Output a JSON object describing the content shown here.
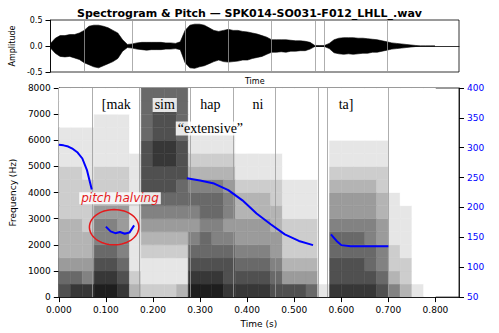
{
  "chart_data": [
    {
      "type": "area",
      "title": "Spectrogram & Pitch — SPK014-SO031-F012_LHLL_.wav",
      "x_label": "Time",
      "y_label": "Amplitude",
      "xlim": [
        0,
        0.85
      ],
      "ylim": [
        -0.5,
        0.5
      ],
      "yticks": [
        -0.5,
        {
          "value": 0,
          "label": "0.0"
        },
        0.5
      ],
      "tick_labels": "y",
      "grid": false,
      "x": [
        0,
        0.01,
        0.02,
        0.03,
        0.04,
        0.05,
        0.06,
        0.07,
        0.08,
        0.09,
        0.1,
        0.11,
        0.12,
        0.13,
        0.14,
        0.15,
        0.16,
        0.17,
        0.18,
        0.19,
        0.2,
        0.21,
        0.22,
        0.23,
        0.24,
        0.25,
        0.26,
        0.27,
        0.28,
        0.29,
        0.3,
        0.31,
        0.32,
        0.33,
        0.34,
        0.35,
        0.36,
        0.37,
        0.38,
        0.39,
        0.4,
        0.41,
        0.42,
        0.43,
        0.44,
        0.45,
        0.46,
        0.47,
        0.48,
        0.49,
        0.5,
        0.51,
        0.52,
        0.53,
        0.54,
        0.55,
        0.56,
        0.57,
        0.58,
        0.59,
        0.6,
        0.61,
        0.62,
        0.63,
        0.64,
        0.65,
        0.66,
        0.67,
        0.68,
        0.69,
        0.7,
        0.71,
        0.72,
        0.73,
        0.74,
        0.75,
        0.76,
        0.77,
        0.78,
        0.79,
        0.8
      ],
      "series": [
        {
          "color": "#000000",
          "values": [
            0.05,
            0.15,
            0.2,
            0.2,
            0.22,
            0.22,
            0.25,
            0.3,
            0.38,
            0.4,
            0.4,
            0.38,
            0.35,
            0.3,
            0.25,
            0.12,
            0.03,
            0.04,
            0.06,
            0.07,
            0.07,
            0.07,
            0.07,
            0.07,
            0.06,
            0.06,
            0.05,
            0.08,
            0.3,
            0.4,
            0.42,
            0.42,
            0.4,
            0.35,
            0.3,
            0.28,
            0.3,
            0.32,
            0.3,
            0.3,
            0.28,
            0.27,
            0.25,
            0.23,
            0.2,
            0.17,
            0.12,
            0.12,
            0.12,
            0.12,
            0.11,
            0.1,
            0.1,
            0.09,
            0.07,
            0.01,
            0.01,
            0.01,
            0.05,
            0.12,
            0.15,
            0.16,
            0.16,
            0.16,
            0.15,
            0.15,
            0.14,
            0.13,
            0.12,
            0.1,
            0.08,
            0.06,
            0.05,
            0.04,
            0.03,
            0.02,
            0.01,
            0,
            0,
            0,
            0
          ]
        },
        {
          "color": "#000000",
          "values": [
            -0.04,
            -0.14,
            -0.2,
            -0.21,
            -0.2,
            -0.23,
            -0.26,
            -0.32,
            -0.36,
            -0.4,
            -0.42,
            -0.38,
            -0.34,
            -0.3,
            -0.24,
            -0.1,
            -0.03,
            -0.04,
            -0.06,
            -0.07,
            -0.08,
            -0.07,
            -0.07,
            -0.07,
            -0.06,
            -0.06,
            -0.05,
            -0.07,
            -0.32,
            -0.42,
            -0.43,
            -0.4,
            -0.38,
            -0.34,
            -0.3,
            -0.27,
            -0.3,
            -0.31,
            -0.3,
            -0.29,
            -0.27,
            -0.27,
            -0.24,
            -0.22,
            -0.2,
            -0.16,
            -0.12,
            -0.12,
            -0.11,
            -0.12,
            -0.1,
            -0.1,
            -0.09,
            -0.09,
            -0.06,
            -0.01,
            -0.01,
            -0.01,
            -0.05,
            -0.13,
            -0.15,
            -0.16,
            -0.15,
            -0.16,
            -0.15,
            -0.14,
            -0.14,
            -0.12,
            -0.12,
            -0.1,
            -0.08,
            -0.06,
            -0.05,
            -0.04,
            -0.03,
            -0.02,
            -0.01,
            0,
            0,
            0,
            0
          ]
        }
      ],
      "boundaries": [
        0.072,
        0.168,
        0.275,
        0.368,
        0.458,
        0.548,
        0.575,
        0.7
      ]
    },
    {
      "type": "spectrogram",
      "x_label": "Time (s)",
      "y_label": "Frequency (Hz)",
      "xlim": [
        0,
        0.85
      ],
      "xticks": [
        {
          "value": 0,
          "label": "0.000"
        },
        {
          "value": 0.1,
          "label": "0.100"
        },
        {
          "value": 0.2,
          "label": "0.200"
        },
        {
          "value": 0.3,
          "label": "0.300"
        },
        {
          "value": 0.4,
          "label": "0.400"
        },
        {
          "value": 0.5,
          "label": "0.500"
        },
        {
          "value": 0.6,
          "label": "0.600"
        },
        {
          "value": 0.7,
          "label": "0.700"
        },
        {
          "value": 0.8,
          "label": "0.800"
        }
      ],
      "ylim": [
        0,
        8000
      ],
      "yticks": [
        0,
        1000,
        2000,
        3000,
        4000,
        5000,
        6000,
        7000,
        8000
      ],
      "y2lim": [
        50,
        400
      ],
      "y2ticks": [
        50,
        100,
        150,
        200,
        250,
        300,
        350,
        400
      ],
      "grid": false,
      "time_edges": [
        0,
        0.025,
        0.05,
        0.075,
        0.1,
        0.125,
        0.15,
        0.175,
        0.2,
        0.225,
        0.25,
        0.275,
        0.3,
        0.325,
        0.35,
        0.375,
        0.4,
        0.425,
        0.45,
        0.475,
        0.5,
        0.525,
        0.55,
        0.575,
        0.6,
        0.625,
        0.65,
        0.675,
        0.7,
        0.725,
        0.75,
        0.775,
        0.8
      ],
      "freq_edges": [
        0,
        500,
        1000,
        1500,
        2000,
        2500,
        3000,
        3500,
        4000,
        4500,
        5000,
        5500,
        6000,
        6500,
        7000,
        7500,
        8000
      ],
      "level_range": [
        0,
        9
      ],
      "cells": [
        [
          7,
          8,
          8,
          9,
          9,
          8,
          3,
          2,
          2,
          2,
          3,
          9,
          9,
          9,
          8,
          8,
          8,
          8,
          7,
          7,
          7,
          6,
          1,
          8,
          8,
          8,
          8,
          7,
          5,
          3,
          1,
          0
        ],
        [
          6,
          6,
          5,
          8,
          8,
          7,
          2,
          1,
          1,
          1,
          1,
          8,
          8,
          8,
          7,
          7,
          7,
          7,
          6,
          4,
          4,
          4,
          0,
          7,
          7,
          7,
          7,
          6,
          3,
          2,
          0,
          0
        ],
        [
          4,
          4,
          4,
          7,
          7,
          6,
          1,
          1,
          1,
          1,
          1,
          7,
          7,
          7,
          7,
          6,
          6,
          6,
          5,
          3,
          3,
          3,
          0,
          7,
          7,
          7,
          6,
          5,
          2,
          2,
          0,
          0
        ],
        [
          3,
          3,
          3,
          6,
          6,
          5,
          1,
          2,
          2,
          2,
          2,
          6,
          6,
          6,
          6,
          5,
          5,
          5,
          4,
          2,
          2,
          2,
          0,
          6,
          6,
          6,
          6,
          5,
          2,
          1,
          0,
          0
        ],
        [
          3,
          3,
          3,
          5,
          5,
          5,
          1,
          3,
          3,
          3,
          3,
          5,
          6,
          5,
          5,
          4,
          4,
          4,
          4,
          2,
          2,
          2,
          0,
          6,
          6,
          6,
          5,
          4,
          1,
          1,
          0,
          0
        ],
        [
          3,
          3,
          2,
          5,
          5,
          4,
          1,
          4,
          4,
          4,
          4,
          4,
          5,
          5,
          4,
          4,
          4,
          4,
          3,
          2,
          2,
          2,
          0,
          5,
          5,
          5,
          5,
          4,
          1,
          1,
          0,
          0
        ],
        [
          2,
          2,
          2,
          4,
          4,
          4,
          1,
          5,
          5,
          5,
          5,
          5,
          6,
          6,
          5,
          3,
          3,
          3,
          3,
          1,
          1,
          1,
          0,
          4,
          4,
          4,
          4,
          3,
          1,
          1,
          0,
          0
        ],
        [
          2,
          2,
          2,
          3,
          3,
          3,
          2,
          6,
          6,
          6,
          6,
          6,
          6,
          6,
          5,
          3,
          3,
          3,
          2,
          1,
          1,
          1,
          0,
          4,
          4,
          4,
          4,
          3,
          1,
          0,
          0,
          0
        ],
        [
          2,
          2,
          2,
          2,
          2,
          2,
          1,
          7,
          7,
          7,
          6,
          5,
          5,
          5,
          4,
          2,
          2,
          2,
          2,
          1,
          1,
          1,
          0,
          3,
          3,
          3,
          3,
          2,
          0,
          0,
          0,
          0
        ],
        [
          2,
          2,
          1,
          2,
          2,
          2,
          1,
          7,
          7,
          7,
          7,
          3,
          3,
          3,
          3,
          1,
          1,
          1,
          1,
          0,
          0,
          0,
          0,
          2,
          2,
          2,
          2,
          2,
          0,
          0,
          0,
          0
        ],
        [
          1,
          1,
          1,
          1,
          1,
          1,
          1,
          7,
          8,
          8,
          7,
          2,
          2,
          2,
          2,
          1,
          1,
          1,
          1,
          0,
          0,
          0,
          0,
          1,
          1,
          1,
          1,
          1,
          0,
          0,
          0,
          0
        ],
        [
          1,
          1,
          1,
          1,
          1,
          1,
          0,
          7,
          8,
          8,
          7,
          1,
          1,
          1,
          1,
          0,
          0,
          0,
          0,
          0,
          0,
          0,
          0,
          1,
          1,
          1,
          1,
          1,
          0,
          0,
          0,
          0
        ],
        [
          1,
          1,
          1,
          1,
          1,
          1,
          0,
          6,
          7,
          7,
          6,
          1,
          1,
          1,
          1,
          0,
          0,
          0,
          0,
          0,
          0,
          0,
          0,
          0,
          0,
          0,
          0,
          0,
          0,
          0,
          0,
          0
        ],
        [
          0,
          0,
          0,
          1,
          1,
          1,
          0,
          6,
          7,
          7,
          6,
          0,
          0,
          0,
          0,
          0,
          0,
          0,
          0,
          0,
          0,
          0,
          0,
          0,
          0,
          0,
          0,
          0,
          0,
          0,
          0,
          0
        ],
        [
          0,
          0,
          0,
          0,
          0,
          0,
          0,
          6,
          7,
          7,
          6,
          0,
          0,
          0,
          0,
          0,
          0,
          0,
          0,
          0,
          0,
          0,
          0,
          0,
          0,
          0,
          0,
          0,
          0,
          0,
          0,
          0
        ],
        [
          0,
          0,
          0,
          0,
          0,
          0,
          0,
          6,
          6,
          6,
          6,
          0,
          0,
          0,
          0,
          0,
          0,
          0,
          0,
          0,
          0,
          0,
          0,
          0,
          0,
          0,
          0,
          0,
          0,
          0,
          0,
          0
        ]
      ],
      "series": [
        {
          "type": "line",
          "axis": "y2",
          "color": "#0000ff",
          "x": [
            0,
            0.01,
            0.02,
            0.03,
            0.04,
            0.05,
            0.06,
            0.07,
            0.085,
            0.1,
            0.11,
            0.12,
            0.13,
            0.14,
            0.15,
            0.16,
            0.22,
            0.272,
            0.3,
            0.33,
            0.36,
            0.39,
            0.42,
            0.45,
            0.48,
            0.51,
            0.54,
            0.56,
            0.578,
            0.59,
            0.6,
            0.62,
            0.65,
            0.7
          ],
          "values": [
            305,
            304,
            302,
            298,
            292,
            282,
            262,
            230,
            null,
            168,
            160,
            157,
            159,
            156,
            158,
            170,
            null,
            249,
            245,
            240,
            229,
            212,
            190,
            172,
            155,
            144,
            137,
            null,
            155,
            144,
            137,
            135,
            135,
            135
          ]
        }
      ],
      "boundaries": [
        0.072,
        0.168,
        0.275,
        0.368,
        0.458,
        0.548,
        0.575,
        0.7
      ],
      "annotations": [
        {
          "text": "[mak",
          "x": 0.122,
          "y": 7350,
          "color": "#000000"
        },
        {
          "text": "sim",
          "x": 0.225,
          "y": 7350,
          "color": "#000000"
        },
        {
          "text": "hap",
          "x": 0.322,
          "y": 7350,
          "color": "#000000"
        },
        {
          "text": "ni",
          "x": 0.423,
          "y": 7350,
          "color": "#000000"
        },
        {
          "text": "ta]",
          "x": 0.61,
          "y": 7350,
          "color": "#000000"
        },
        {
          "text": "“extensive”",
          "x": 0.322,
          "y": 6450,
          "color": "#000000"
        },
        {
          "text": "pitch halving",
          "x": 0.13,
          "y": 3780,
          "color": "#e41a1c"
        }
      ],
      "highlight": {
        "x": [
          0.065,
          0.17
        ],
        "y": [
          2000,
          3350
        ],
        "color": "#e41a1c"
      }
    }
  ]
}
